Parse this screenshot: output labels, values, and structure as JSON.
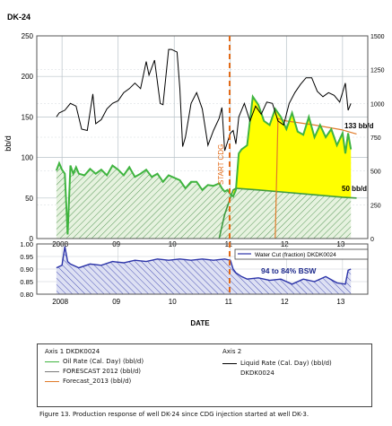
{
  "chart_data": [
    {
      "type": "area",
      "title": "DK-24",
      "ylabel": "bb/d",
      "ylim": [
        0,
        250
      ],
      "y2lim": [
        0,
        1500
      ],
      "left_ticks": [
        "0",
        "50",
        "100",
        "150",
        "200",
        "250"
      ],
      "right_ticks": [
        "0",
        "250",
        "500",
        "750",
        "1000",
        "1250",
        "1500"
      ],
      "x_ticks": [
        "2008",
        "09",
        "10",
        "11",
        "12",
        "13"
      ],
      "grid": true,
      "annotations": {
        "start_cdg": "START CDG",
        "rate_133": "133 bb/d",
        "rate_50": "50 bb/d"
      },
      "series": [
        {
          "name": "Liquid Rate (Cal. Day) (bbl/d)",
          "axis": "right",
          "x": [
            2007.9,
            2007.95,
            2008.05,
            2008.15,
            2008.25,
            2008.35,
            2008.45,
            2008.55,
            2008.6,
            2008.7,
            2008.8,
            2008.9,
            2009.0,
            2009.1,
            2009.2,
            2009.3,
            2009.4,
            2009.5,
            2009.55,
            2009.65,
            2009.75,
            2009.8,
            2009.9,
            2009.95,
            2010.05,
            2010.1,
            2010.15,
            2010.2,
            2010.3,
            2010.4,
            2010.5,
            2010.6,
            2010.7,
            2010.8,
            2010.85,
            2010.9,
            2011.0,
            2011.05,
            2011.1,
            2011.15,
            2011.25,
            2011.35,
            2011.45,
            2011.55,
            2011.65,
            2011.75,
            2011.85,
            2011.95,
            2012.05,
            2012.15,
            2012.25,
            2012.35,
            2012.45,
            2012.55,
            2012.65,
            2012.75,
            2012.85,
            2012.95,
            2013.05,
            2013.1,
            2013.15
          ],
          "values": [
            900,
            930,
            950,
            1000,
            980,
            810,
            800,
            1070,
            850,
            880,
            960,
            1000,
            1020,
            1080,
            1110,
            1150,
            1110,
            1310,
            1210,
            1320,
            1000,
            990,
            1400,
            1400,
            1380,
            1110,
            680,
            750,
            1000,
            1080,
            960,
            690,
            800,
            890,
            970,
            650,
            780,
            800,
            700,
            900,
            1000,
            870,
            980,
            920,
            1010,
            1000,
            870,
            840,
            1000,
            1080,
            1140,
            1190,
            1190,
            1090,
            1050,
            1080,
            1060,
            1010,
            1150,
            950,
            1000
          ]
        },
        {
          "name": "Oil Rate (Cal. Day) (bbl/d)",
          "axis": "left",
          "x": [
            2007.9,
            2007.95,
            2008.0,
            2008.05,
            2008.1,
            2008.15,
            2008.2,
            2008.25,
            2008.3,
            2008.4,
            2008.5,
            2008.6,
            2008.7,
            2008.8,
            2008.9,
            2009.0,
            2009.1,
            2009.2,
            2009.3,
            2009.4,
            2009.5,
            2009.6,
            2009.7,
            2009.8,
            2009.9,
            2010.0,
            2010.1,
            2010.2,
            2010.3,
            2010.4,
            2010.5,
            2010.6,
            2010.7,
            2010.8,
            2010.85,
            2010.9,
            2010.95,
            2011.0,
            2011.05,
            2011.1,
            2011.15,
            2011.2,
            2011.3,
            2011.4,
            2011.5,
            2011.6,
            2011.7,
            2011.8,
            2011.9,
            2012.0,
            2012.1,
            2012.2,
            2012.3,
            2012.4,
            2012.5,
            2012.6,
            2012.7,
            2012.8,
            2012.9,
            2013.0,
            2013.05,
            2013.1,
            2013.15
          ],
          "values": [
            84,
            93,
            85,
            80,
            5,
            90,
            80,
            88,
            80,
            78,
            86,
            80,
            85,
            78,
            90,
            85,
            78,
            88,
            76,
            80,
            85,
            76,
            80,
            70,
            78,
            75,
            72,
            62,
            70,
            70,
            60,
            66,
            65,
            68,
            62,
            58,
            60,
            55,
            52,
            60,
            105,
            110,
            115,
            175,
            165,
            145,
            140,
            160,
            150,
            135,
            155,
            132,
            128,
            150,
            125,
            140,
            125,
            135,
            115,
            130,
            105,
            130,
            110
          ]
        },
        {
          "name": "FORESCAST 2012 (bbl/d)",
          "axis": "left",
          "x": [
            2010.8,
            2010.9,
            2011.0,
            2011.05,
            2011.1,
            2011.5,
            2012.0,
            2012.5,
            2013.0,
            2013.25
          ],
          "values": [
            0,
            30,
            50,
            60,
            62,
            60,
            57,
            54,
            51,
            50
          ]
        },
        {
          "name": "Forecast_2013 (bbl/d)",
          "axis": "left",
          "x": [
            2011.8,
            2011.85,
            2012.0,
            2012.5,
            2013.0,
            2013.25
          ],
          "values": [
            0,
            148,
            145,
            140,
            134,
            129
          ]
        }
      ]
    },
    {
      "type": "area",
      "ylim": [
        0.8,
        1.0
      ],
      "left_ticks": [
        "1.00",
        "0.95",
        "0.90",
        "0.85",
        "0.80"
      ],
      "x_ticks": [
        "2008",
        "09",
        "10",
        "11",
        "12",
        "13"
      ],
      "xlabel": "DATE",
      "annotation": "94 to 84% BSW",
      "series": [
        {
          "name": "Water Cut (fraction) DKDK0024",
          "x": [
            2007.9,
            2008.0,
            2008.05,
            2008.1,
            2008.15,
            2008.3,
            2008.5,
            2008.7,
            2008.9,
            2009.1,
            2009.3,
            2009.5,
            2009.7,
            2009.9,
            2010.1,
            2010.3,
            2010.5,
            2010.7,
            2010.9,
            2011.0,
            2011.05,
            2011.1,
            2011.2,
            2011.3,
            2011.5,
            2011.7,
            2011.9,
            2012.1,
            2012.3,
            2012.5,
            2012.7,
            2012.9,
            2013.05,
            2013.1,
            2013.15
          ],
          "values": [
            0.905,
            0.915,
            0.99,
            0.93,
            0.92,
            0.905,
            0.92,
            0.915,
            0.93,
            0.925,
            0.935,
            0.93,
            0.94,
            0.935,
            0.94,
            0.935,
            0.94,
            0.935,
            0.94,
            0.935,
            0.9,
            0.885,
            0.87,
            0.86,
            0.865,
            0.855,
            0.86,
            0.84,
            0.86,
            0.85,
            0.87,
            0.845,
            0.84,
            0.895,
            0.9
          ]
        }
      ]
    }
  ],
  "legend": {
    "axis1_title": "Axis 1 DKDK0024",
    "axis2_title": "Axis 2",
    "items": [
      {
        "label": "Oil Rate (Cal. Day) (bbl/d)",
        "color": "#3fb43f"
      },
      {
        "label": "FORESCAST 2012 (bbl/d)",
        "color": "#7a7a7a"
      },
      {
        "label": "Forecast_2013 (bbl/d)",
        "color": "#e07b2a"
      }
    ],
    "axis2_item": {
      "label": "Liquid Rate (Cal. Day) (bbl/d)",
      "sublabel": "DKDK0024",
      "color": "#000000"
    }
  },
  "caption": "Figure 13.  Production response of well DK-24 since CDG injection started at well DK-3.",
  "colors": {
    "oil": "#3fb43f",
    "oil_hatch": "#5a9a5a",
    "yellow": "#ffff00",
    "water": "#2b33a8",
    "forecast2012": "#7a7a7a",
    "forecast2013": "#e07b2a",
    "start_line": "#e26a17"
  }
}
